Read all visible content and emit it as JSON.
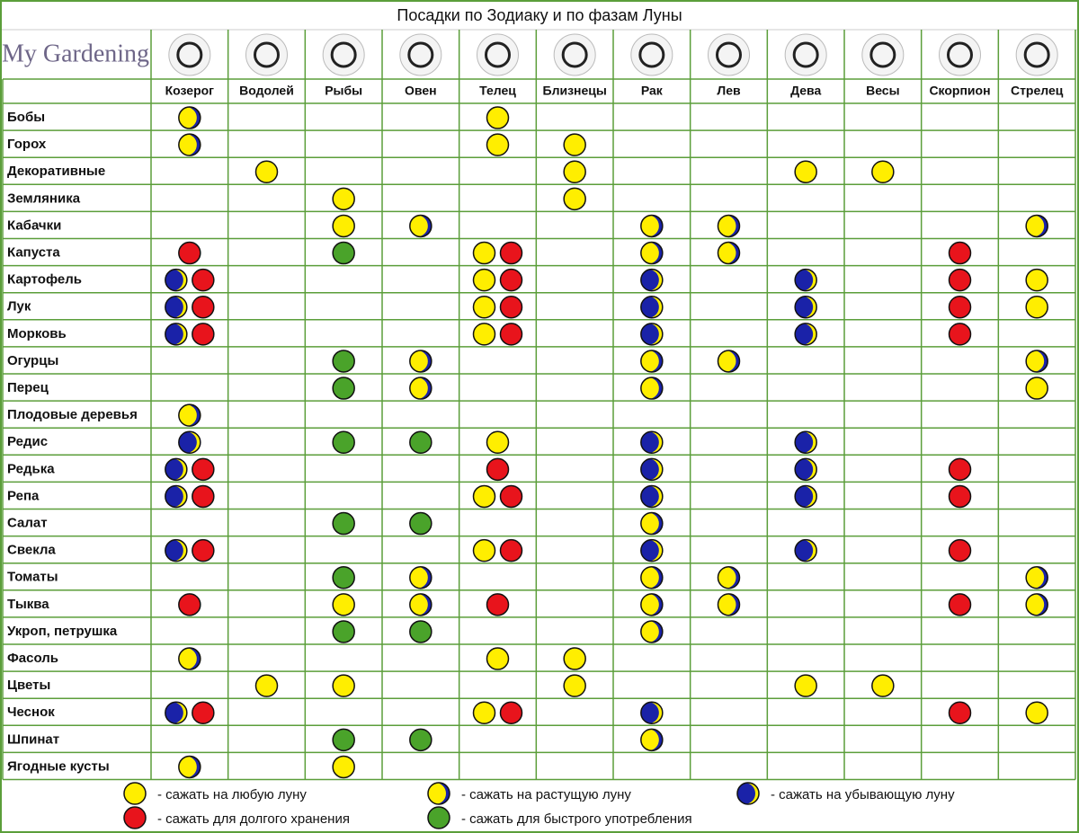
{
  "header": {
    "title": "Посадки по Зодиаку и по фазам Луны",
    "logo": "My Gardening"
  },
  "columns": [
    "Козерог",
    "Водолей",
    "Рыбы",
    "Овен",
    "Телец",
    "Близнецы",
    "Рак",
    "Лев",
    "Дева",
    "Весы",
    "Скорпион",
    "Стрелец"
  ],
  "legend": [
    {
      "symbol": "any",
      "label": "- сажать на любую луну"
    },
    {
      "symbol": "waxing",
      "label": "- сажать на растущую луну"
    },
    {
      "symbol": "waning",
      "label": "- сажать на убывающую луну"
    },
    {
      "symbol": "storage",
      "label": "- сажать для долгого хранения"
    },
    {
      "symbol": "quick",
      "label": "- сажать для быстрого употребления"
    }
  ],
  "rows": [
    {
      "label": "Бобы",
      "cells": [
        [
          1
        ],
        [],
        [],
        [],
        [
          0
        ],
        [],
        [],
        [],
        [],
        [],
        [],
        []
      ]
    },
    {
      "label": "Горох",
      "cells": [
        [
          1
        ],
        [],
        [],
        [],
        [
          0
        ],
        [
          0
        ],
        [],
        [],
        [],
        [],
        [],
        []
      ]
    },
    {
      "label": "Декоративные",
      "cells": [
        [],
        [
          0
        ],
        [],
        [],
        [],
        [
          0
        ],
        [],
        [],
        [
          0
        ],
        [
          0
        ],
        [],
        []
      ]
    },
    {
      "label": "Земляника",
      "cells": [
        [],
        [],
        [
          0
        ],
        [],
        [],
        [
          0
        ],
        [],
        [],
        [],
        [],
        [],
        []
      ]
    },
    {
      "label": "Кабачки",
      "cells": [
        [],
        [],
        [
          0
        ],
        [
          1
        ],
        [],
        [],
        [
          1
        ],
        [
          1
        ],
        [],
        [],
        [],
        [
          1
        ]
      ]
    },
    {
      "label": "Капуста",
      "cells": [
        [
          3
        ],
        [],
        [
          4
        ],
        [],
        [
          0,
          3
        ],
        [],
        [
          1
        ],
        [
          1
        ],
        [],
        [],
        [
          3
        ],
        []
      ]
    },
    {
      "label": "Картофель",
      "cells": [
        [
          2,
          3
        ],
        [],
        [],
        [],
        [
          0,
          3
        ],
        [],
        [
          2
        ],
        [],
        [
          2
        ],
        [],
        [
          3
        ],
        [
          0
        ]
      ]
    },
    {
      "label": "Лук",
      "cells": [
        [
          2,
          3
        ],
        [],
        [],
        [],
        [
          0,
          3
        ],
        [],
        [
          2
        ],
        [],
        [
          2
        ],
        [],
        [
          3
        ],
        [
          0
        ]
      ]
    },
    {
      "label": "Морковь",
      "cells": [
        [
          2,
          3
        ],
        [],
        [],
        [],
        [
          0,
          3
        ],
        [],
        [
          2
        ],
        [],
        [
          2
        ],
        [],
        [
          3
        ],
        []
      ]
    },
    {
      "label": "Огурцы",
      "cells": [
        [],
        [],
        [
          4
        ],
        [
          1
        ],
        [],
        [],
        [
          1
        ],
        [
          1
        ],
        [],
        [],
        [],
        [
          1
        ]
      ]
    },
    {
      "label": "Перец",
      "cells": [
        [],
        [],
        [
          4
        ],
        [
          1
        ],
        [],
        [],
        [
          1
        ],
        [],
        [],
        [],
        [],
        [
          0
        ]
      ]
    },
    {
      "label": "Плодовые деревья",
      "cells": [
        [
          1
        ],
        [],
        [],
        [],
        [],
        [],
        [],
        [],
        [],
        [],
        [],
        []
      ]
    },
    {
      "label": "Редис",
      "cells": [
        [
          2
        ],
        [],
        [
          4
        ],
        [
          4
        ],
        [
          0
        ],
        [],
        [
          2
        ],
        [],
        [
          2
        ],
        [],
        [],
        []
      ]
    },
    {
      "label": "Редька",
      "cells": [
        [
          2,
          3
        ],
        [],
        [],
        [],
        [
          3
        ],
        [],
        [
          2
        ],
        [],
        [
          2
        ],
        [],
        [
          3
        ],
        []
      ]
    },
    {
      "label": "Репа",
      "cells": [
        [
          2,
          3
        ],
        [],
        [],
        [],
        [
          0,
          3
        ],
        [],
        [
          2
        ],
        [],
        [
          2
        ],
        [],
        [
          3
        ],
        []
      ]
    },
    {
      "label": "Салат",
      "cells": [
        [],
        [],
        [
          4
        ],
        [
          4
        ],
        [],
        [],
        [
          1
        ],
        [],
        [],
        [],
        [],
        []
      ]
    },
    {
      "label": "Свекла",
      "cells": [
        [
          2,
          3
        ],
        [],
        [],
        [],
        [
          0,
          3
        ],
        [],
        [
          2
        ],
        [],
        [
          2
        ],
        [],
        [
          3
        ],
        []
      ]
    },
    {
      "label": "Томаты",
      "cells": [
        [],
        [],
        [
          4
        ],
        [
          1
        ],
        [],
        [],
        [
          1
        ],
        [
          1
        ],
        [],
        [],
        [],
        [
          1
        ]
      ]
    },
    {
      "label": "Тыква",
      "cells": [
        [
          3
        ],
        [],
        [
          0
        ],
        [
          1
        ],
        [
          3
        ],
        [],
        [
          1
        ],
        [
          1
        ],
        [],
        [],
        [
          3
        ],
        [
          1
        ]
      ]
    },
    {
      "label": "Укроп, петрушка",
      "cells": [
        [],
        [],
        [
          4
        ],
        [
          4
        ],
        [],
        [],
        [
          1
        ],
        [],
        [],
        [],
        [],
        []
      ]
    },
    {
      "label": "Фасоль",
      "cells": [
        [
          1
        ],
        [],
        [],
        [],
        [
          0
        ],
        [
          0
        ],
        [],
        [],
        [],
        [],
        [],
        []
      ]
    },
    {
      "label": "Цветы",
      "cells": [
        [],
        [
          0
        ],
        [
          0
        ],
        [],
        [],
        [
          0
        ],
        [],
        [],
        [
          0
        ],
        [
          0
        ],
        [],
        []
      ]
    },
    {
      "label": "Чеснок",
      "cells": [
        [
          2,
          3
        ],
        [],
        [],
        [],
        [
          0,
          3
        ],
        [],
        [
          2
        ],
        [],
        [],
        [],
        [
          3
        ],
        [
          0
        ]
      ]
    },
    {
      "label": "Шпинат",
      "cells": [
        [],
        [],
        [
          4
        ],
        [
          4
        ],
        [],
        [],
        [
          1
        ],
        [],
        [],
        [],
        [],
        []
      ]
    },
    {
      "label": "Ягодные кусты",
      "cells": [
        [
          1
        ],
        [],
        [
          0
        ],
        [],
        [],
        [],
        [],
        [],
        [],
        [],
        [],
        []
      ]
    }
  ]
}
